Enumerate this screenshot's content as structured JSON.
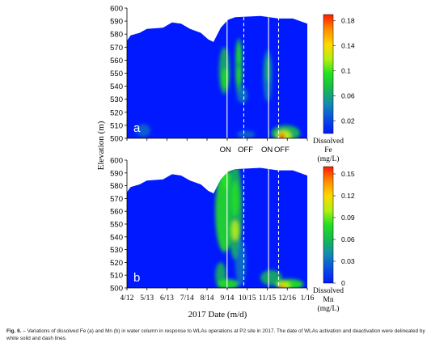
{
  "chart_data": [
    {
      "type": "heatmap",
      "panel_label": "a",
      "ylabel": "Elevation (m)",
      "ylim": [
        500,
        600
      ],
      "yticks": [
        "500",
        "510",
        "520",
        "530",
        "540",
        "550",
        "560",
        "570",
        "580",
        "590",
        "600"
      ],
      "colorbar": {
        "title_lines": [
          "Dissolved",
          "Fe",
          "(mg/L)"
        ],
        "range": [
          0,
          0.19
        ],
        "ticks": [
          0.02,
          0.06,
          0.1,
          0.14,
          0.18
        ],
        "tick_labels": [
          "0.02",
          "0.06",
          "0.1",
          "0.14",
          "0.18"
        ]
      },
      "events": [
        {
          "label": "ON",
          "date": "9/22",
          "style": "solid"
        },
        {
          "label": "OFF",
          "date": "10/5",
          "style": "dashed"
        },
        {
          "label": "ON",
          "date": "11/14",
          "style": "solid"
        },
        {
          "label": "OFF",
          "date": "11/24",
          "style": "dashed"
        }
      ]
    },
    {
      "type": "heatmap",
      "panel_label": "b",
      "ylabel": "Elevation (m)",
      "xlabel": "2017 Date (m/d)",
      "ylim": [
        500,
        600
      ],
      "yticks": [
        "500",
        "510",
        "520",
        "530",
        "540",
        "550",
        "560",
        "570",
        "580",
        "590",
        "600"
      ],
      "xticks": [
        "4/12",
        "5/13",
        "6/13",
        "7/14",
        "8/14",
        "9/14",
        "10/15",
        "11/15",
        "12/16",
        "1/16"
      ],
      "colorbar": {
        "title_lines": [
          "Dissolved",
          "Mn",
          "(mg/L)"
        ],
        "range": [
          0,
          0.16
        ],
        "ticks": [
          0,
          0.03,
          0.06,
          0.09,
          0.12,
          0.15
        ],
        "tick_labels": [
          "0",
          "0.03",
          "0.06",
          "0.09",
          "0.12",
          "0.15"
        ]
      }
    }
  ],
  "colors": {
    "background": "#0019ff",
    "colormap": [
      "#0019ff",
      "#0a4fe0",
      "#138bb0",
      "#16b850",
      "#22e020",
      "#b4ef12",
      "#ffd800",
      "#ff8c00",
      "#ff1a00"
    ]
  },
  "caption": {
    "prefix": "Fig. 6.",
    "text": " – Variations of dissolved Fe (a) and Mn (b) in water column in response to WLAs operations at P2 site in 2017. The date of WLAs activation and deactivation were delineated by white solid and dash lines."
  }
}
